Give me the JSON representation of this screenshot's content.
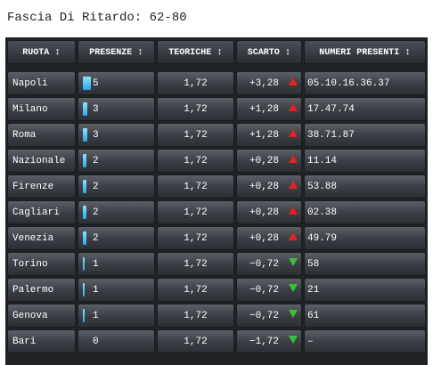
{
  "title": "Fascia Di Ritardo: 62-80",
  "header": {
    "ruota": "RUOTA",
    "presenze": "PRESENZE",
    "teoriche": "TEORICHE",
    "scarto": "SCARTO",
    "numeri": "NUMERI PRESENTI",
    "sort_glyph": "↕"
  },
  "colors": {
    "bar": "#2aa7e8",
    "up": "#e8221e",
    "down": "#38c23a"
  },
  "rows": [
    {
      "ruota": "Napoli",
      "presenze": "5",
      "bar_fraction": 1.0,
      "teoriche": "1,72",
      "scarto": "+3,28",
      "trend": "up",
      "numeri": "05.10.16.36.37"
    },
    {
      "ruota": "Milano",
      "presenze": "3",
      "bar_fraction": 0.6,
      "teoriche": "1,72",
      "scarto": "+1,28",
      "trend": "up",
      "numeri": "17.47.74"
    },
    {
      "ruota": "Roma",
      "presenze": "3",
      "bar_fraction": 0.6,
      "teoriche": "1,72",
      "scarto": "+1,28",
      "trend": "up",
      "numeri": "38.71.87"
    },
    {
      "ruota": "Nazionale",
      "presenze": "2",
      "bar_fraction": 0.4,
      "teoriche": "1,72",
      "scarto": "+0,28",
      "trend": "up",
      "numeri": "11.14"
    },
    {
      "ruota": "Firenze",
      "presenze": "2",
      "bar_fraction": 0.4,
      "teoriche": "1,72",
      "scarto": "+0,28",
      "trend": "up",
      "numeri": "53.88"
    },
    {
      "ruota": "Cagliari",
      "presenze": "2",
      "bar_fraction": 0.4,
      "teoriche": "1,72",
      "scarto": "+0,28",
      "trend": "up",
      "numeri": "02.38"
    },
    {
      "ruota": "Venezia",
      "presenze": "2",
      "bar_fraction": 0.4,
      "teoriche": "1,72",
      "scarto": "+0,28",
      "trend": "up",
      "numeri": "49.79"
    },
    {
      "ruota": "Torino",
      "presenze": "1",
      "bar_fraction": 0.2,
      "teoriche": "1,72",
      "scarto": "−0,72",
      "trend": "down",
      "numeri": "58"
    },
    {
      "ruota": "Palermo",
      "presenze": "1",
      "bar_fraction": 0.2,
      "teoriche": "1,72",
      "scarto": "−0,72",
      "trend": "down",
      "numeri": "21"
    },
    {
      "ruota": "Genova",
      "presenze": "1",
      "bar_fraction": 0.2,
      "teoriche": "1,72",
      "scarto": "−0,72",
      "trend": "down",
      "numeri": "61"
    },
    {
      "ruota": "Bari",
      "presenze": "0",
      "bar_fraction": 0,
      "teoriche": "1,72",
      "scarto": "−1,72",
      "trend": "down",
      "numeri": "–"
    }
  ]
}
